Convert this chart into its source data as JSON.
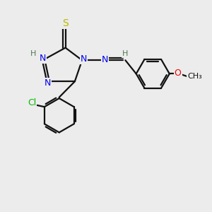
{
  "bg_color": "#ececec",
  "atom_colors": {
    "N": "#0000ee",
    "S": "#b8b800",
    "Cl": "#00bb00",
    "O": "#ee0000",
    "C": "#111111",
    "H": "#557755"
  }
}
